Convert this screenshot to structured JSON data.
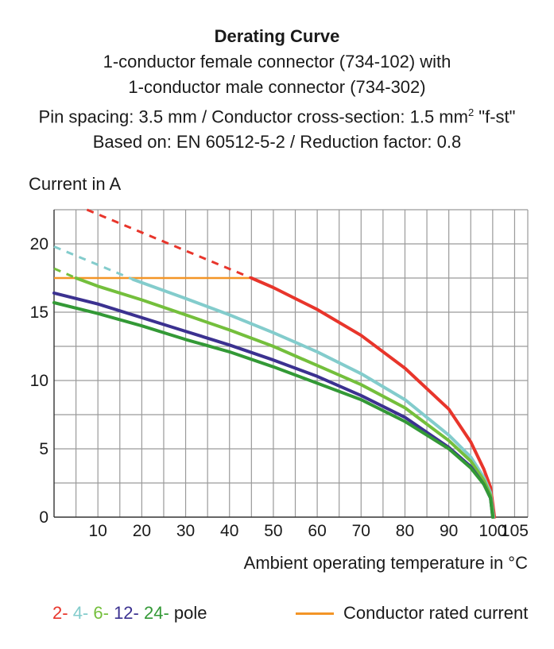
{
  "header": {
    "title": "Derating Curve",
    "line1": "1-conductor female connector (734-102) with",
    "line2": "1-conductor male connector (734-302)",
    "line3_before": "Pin spacing: 3.5 mm / Conductor cross-section: 1.5 mm",
    "line3_sup": "2",
    "line3_after": " \"f-st\"",
    "line4": "Based on: EN 60512-5-2 / Reduction factor: 0.8"
  },
  "legend": {
    "poles": [
      {
        "label": "2-",
        "color": "#e8352b"
      },
      {
        "label": "4-",
        "color": "#83cccc"
      },
      {
        "label": "6-",
        "color": "#74bf3c"
      },
      {
        "label": "12-",
        "color": "#3b3190"
      },
      {
        "label": "24-",
        "color": "#339936"
      }
    ],
    "pole_suffix": " pole",
    "rated_label": "Conductor rated current",
    "rated_color": "#f39526"
  },
  "chart_data": {
    "type": "line",
    "xlabel": "Ambient operating temperature in °C",
    "ylabel": "Current in A",
    "xlim": [
      0,
      108
    ],
    "ylim": [
      0,
      22.5
    ],
    "xticks": [
      10,
      20,
      30,
      40,
      50,
      60,
      70,
      80,
      90,
      100,
      105
    ],
    "yticks": [
      0,
      5,
      10,
      15,
      20
    ],
    "grid": true,
    "rated_current": {
      "name": "Conductor rated current",
      "color": "#f39526",
      "x": [
        0,
        45
      ],
      "y": 17.5
    },
    "series": [
      {
        "name": "2-",
        "color": "#e8352b",
        "dashed": {
          "x": [
            7.5,
            45
          ],
          "y": [
            22.5,
            17.5
          ]
        },
        "x": [
          45,
          50,
          60,
          70,
          80,
          90,
          95,
          98,
          99.5,
          100,
          100.4
        ],
        "y": [
          17.5,
          16.8,
          15.2,
          13.3,
          10.9,
          7.9,
          5.5,
          3.5,
          2.2,
          1.0,
          0
        ]
      },
      {
        "name": "4-",
        "color": "#83cccc",
        "dashed": {
          "x": [
            0,
            18
          ],
          "y": [
            19.8,
            17.4
          ]
        },
        "x": [
          18,
          30,
          40,
          50,
          60,
          70,
          80,
          90,
          95,
          98,
          99.5,
          100.2
        ],
        "y": [
          17.4,
          16.0,
          14.8,
          13.5,
          12.1,
          10.5,
          8.6,
          6.0,
          4.4,
          2.9,
          1.8,
          0
        ]
      },
      {
        "name": "6-",
        "color": "#74bf3c",
        "dashed": {
          "x": [
            0,
            5
          ],
          "y": [
            18.2,
            17.5
          ]
        },
        "x": [
          5,
          10,
          20,
          30,
          40,
          50,
          60,
          70,
          80,
          90,
          95,
          98,
          99.5,
          100.1
        ],
        "y": [
          17.5,
          16.9,
          15.9,
          14.8,
          13.7,
          12.5,
          11.1,
          9.7,
          8.0,
          5.6,
          4.1,
          2.7,
          1.6,
          0
        ]
      },
      {
        "name": "12-",
        "color": "#3b3190",
        "x": [
          0,
          10,
          20,
          30,
          40,
          50,
          60,
          70,
          80,
          90,
          95,
          98,
          99.5,
          100
        ],
        "y": [
          16.4,
          15.6,
          14.6,
          13.6,
          12.6,
          11.5,
          10.3,
          8.9,
          7.3,
          5.1,
          3.7,
          2.4,
          1.4,
          0
        ]
      },
      {
        "name": "24-",
        "color": "#339936",
        "x": [
          0,
          10,
          20,
          30,
          40,
          50,
          60,
          70,
          80,
          90,
          95,
          98,
          99.5,
          100
        ],
        "y": [
          15.7,
          14.9,
          14.0,
          13.0,
          12.1,
          11.0,
          9.8,
          8.6,
          7.0,
          5.0,
          3.6,
          2.4,
          1.4,
          0
        ]
      }
    ]
  }
}
